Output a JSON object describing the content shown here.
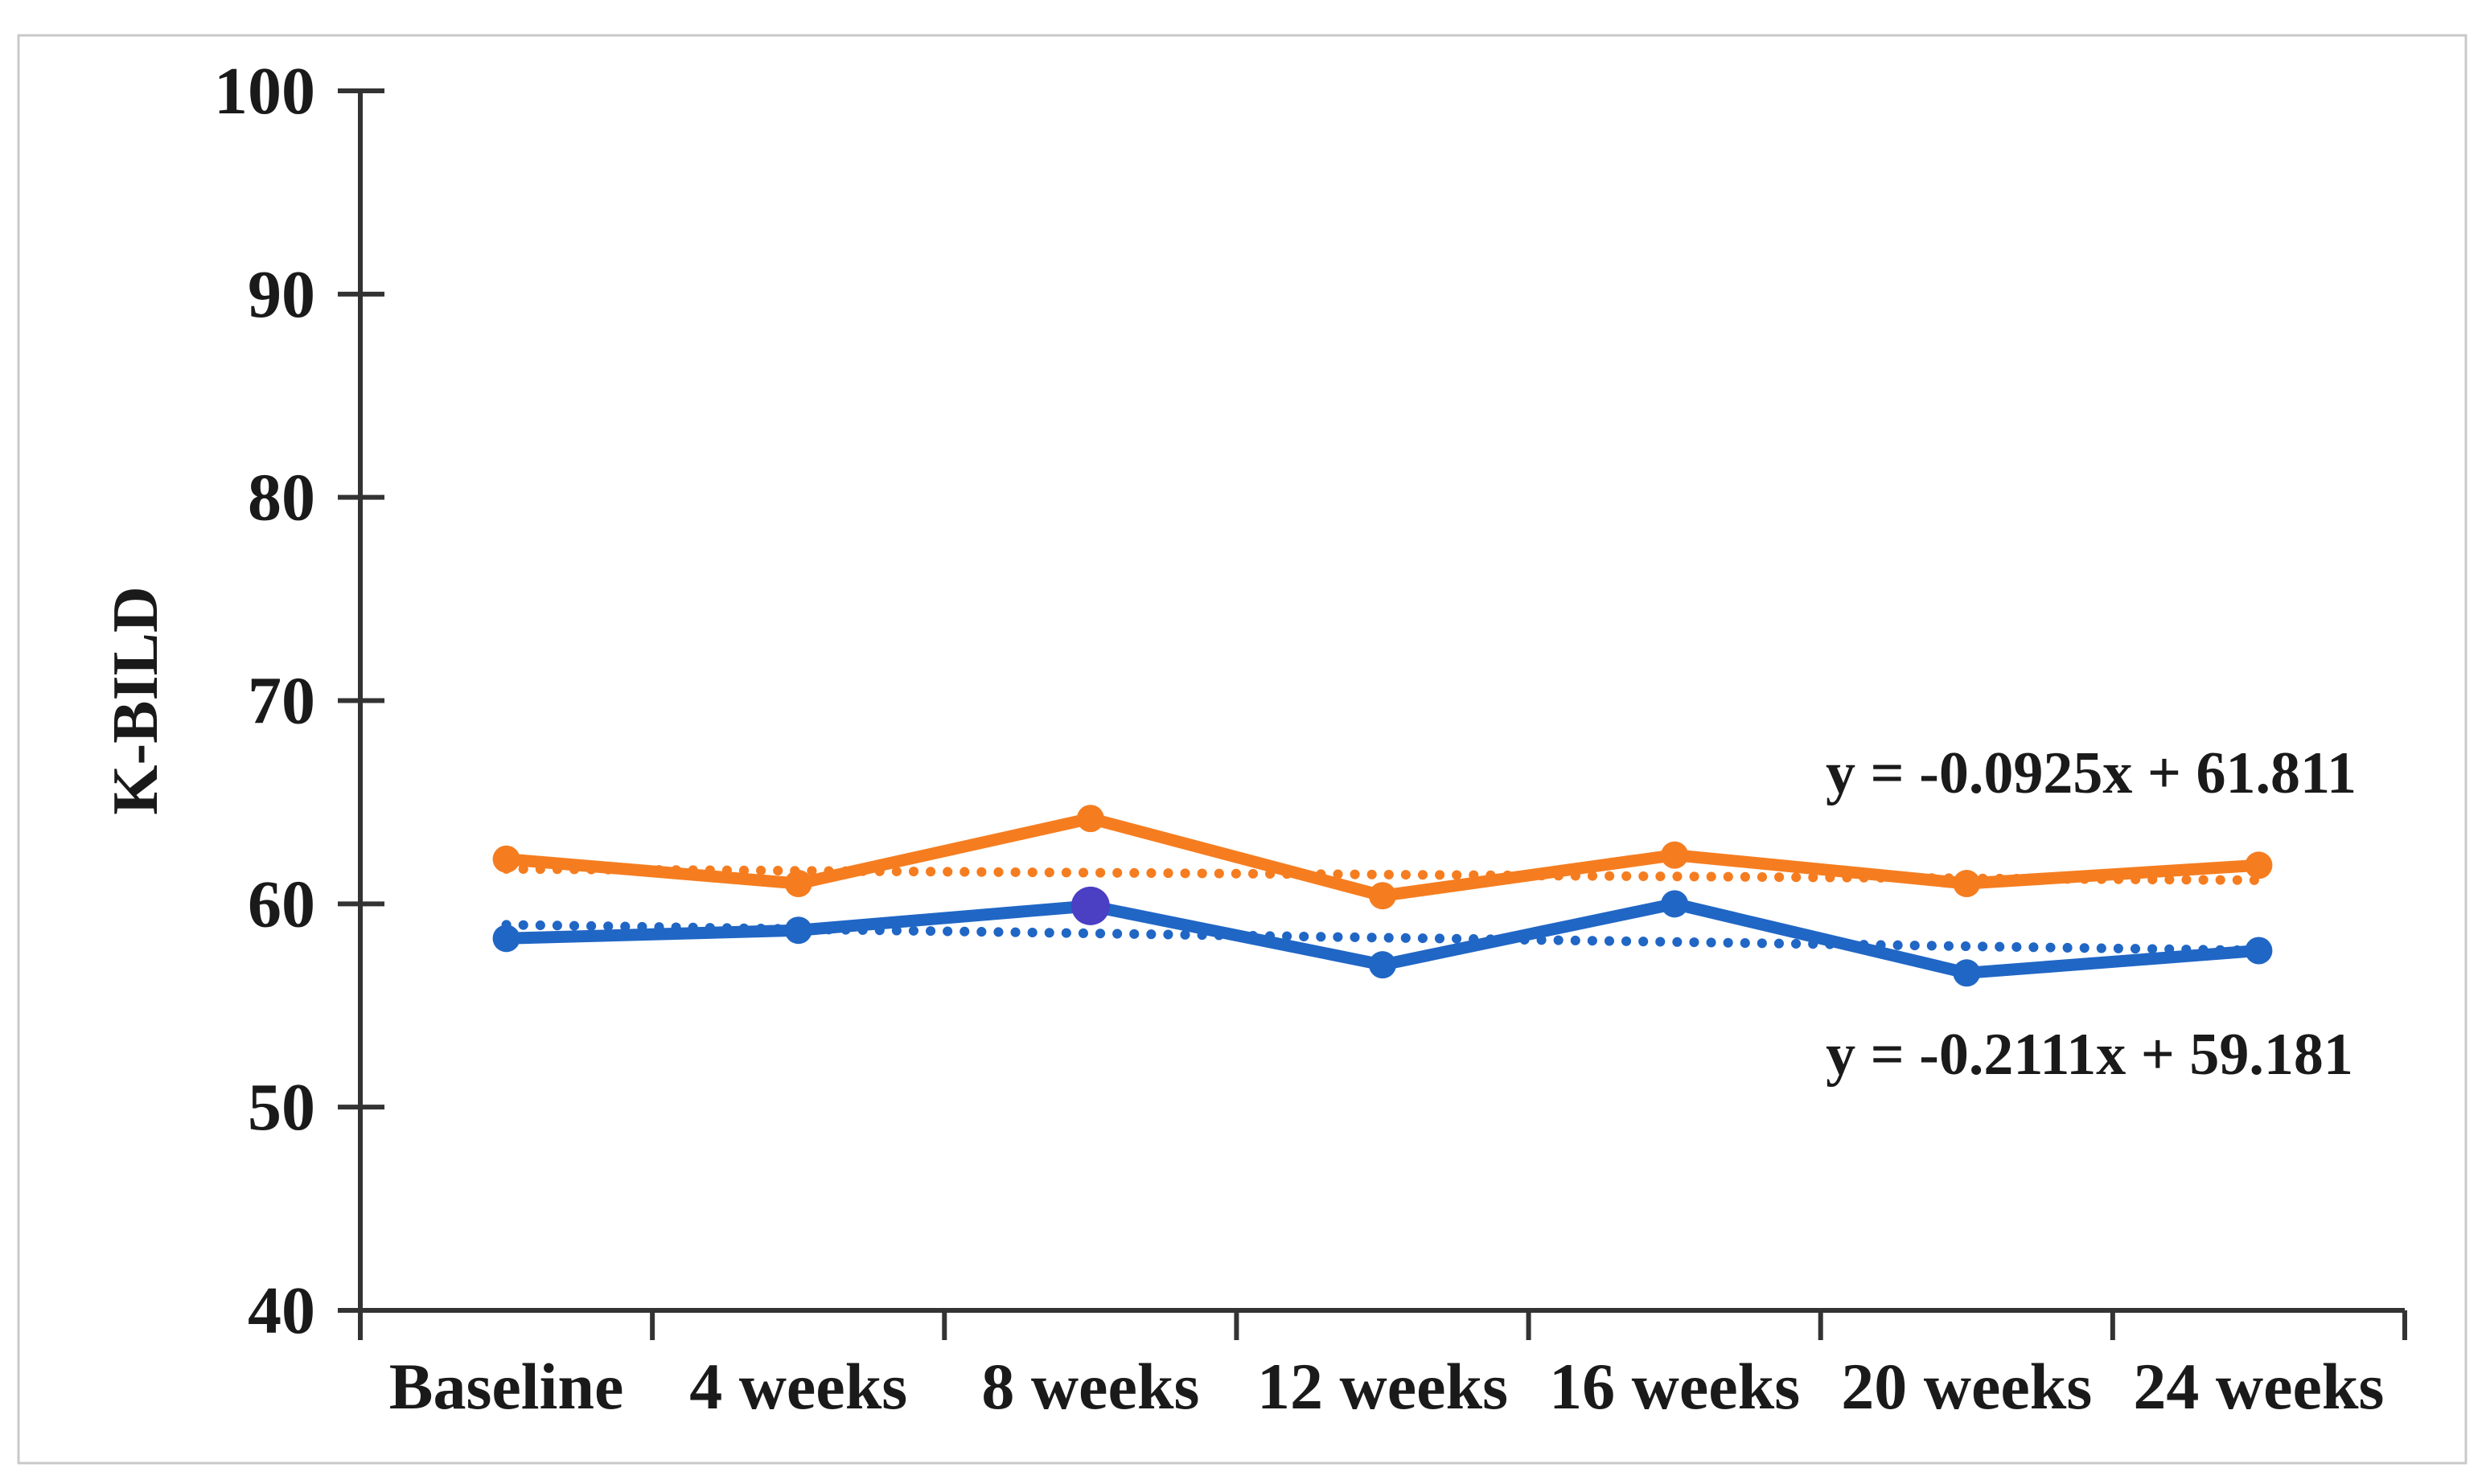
{
  "figure": {
    "background": "#ffffff",
    "border_color": "#c9c9c9",
    "axis_color": "#333333",
    "text_color": "#1a1a1a"
  },
  "chart_data": {
    "type": "line",
    "title": "",
    "xlabel": "",
    "ylabel": "K-BILD",
    "categories": [
      "Baseline",
      "4 weeks",
      "8 weeks",
      "12 weeks",
      "16 weeks",
      "20 weeks",
      "24 weeks"
    ],
    "ylim": [
      40,
      100
    ],
    "yticks": [
      100,
      90,
      80,
      70,
      60,
      50,
      40
    ],
    "grid": false,
    "legend": "none",
    "series": [
      {
        "name": "upper series (orange)",
        "color": "#F57D20",
        "values": [
          62.2,
          61.0,
          64.2,
          60.4,
          62.4,
          61.0,
          61.9
        ],
        "marker": "circle",
        "trendline": {
          "slope": -0.0925,
          "intercept": 61.811,
          "style": "dotted",
          "label": "y = -0.0925x + 61.811"
        }
      },
      {
        "name": "lower series (blue)",
        "color": "#2066C5",
        "values": [
          58.3,
          58.7,
          59.9,
          57.0,
          60.0,
          56.6,
          57.7
        ],
        "marker": "circle",
        "special_marker": {
          "index": 2,
          "color": "#4B3FC4"
        },
        "trendline": {
          "slope": -0.2111,
          "intercept": 59.181,
          "style": "dotted",
          "label": "y = -0.2111x + 59.181"
        }
      }
    ],
    "annotations": [
      {
        "text": "y = -0.0925x + 61.811",
        "x": 2600,
        "y": 986
      },
      {
        "text": "y = -0.2111x + 59.181",
        "x": 2598,
        "y": 1336
      }
    ]
  }
}
